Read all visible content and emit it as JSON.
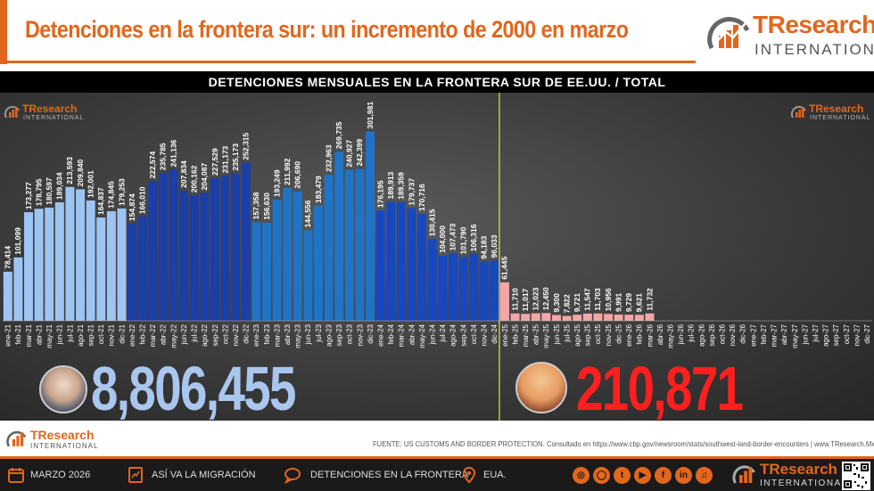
{
  "header": {
    "title": "Detenciones en la frontera sur: un incremento de 2000 en marzo",
    "logo_main": "TResearch",
    "logo_sub": "INTERNATIONAL"
  },
  "subtitle": "DETENCIONES MENSUALES EN LA FRONTERA SUR DE EE.UU. / TOTAL",
  "plot_logo": {
    "main": "TResearch",
    "sub": "INTERNATIONAL"
  },
  "totals": {
    "biden": "8,806,455",
    "trump": "210,871"
  },
  "footer": {
    "logo_main": "TResearch",
    "logo_sub": "INTERNATIONAL",
    "source": "FUENTE: US CUSTOMS AND BORDER PROTECTION. Consultado en https://www.cbp.gov/newsroom/stats/southwest-land-border-encounters | www.TResearch.Mx"
  },
  "bottom_bar": {
    "date": "MARZO 2026",
    "section": "ASÍ VA LA MIGRACIÓN",
    "topic": "DETENCIONES EN LA FRONTERA",
    "country": "EUA.",
    "social_icons": [
      "web-icon",
      "instagram-icon",
      "twitter-icon",
      "youtube-icon",
      "facebook-icon",
      "linkedin-icon",
      "tiktok-icon"
    ]
  },
  "colors": {
    "accent": "#e2661c",
    "y2021": "#9ec4f2",
    "y2022": "#1b3fa6",
    "y2023": "#1f74c6",
    "y2024": "#1748c0",
    "trump": "#f4a6a6",
    "divider": "#e6e63c",
    "biden_total": "#a9c6ee",
    "trump_total": "#ff1f1f"
  },
  "chart_data": {
    "type": "bar",
    "categories": [
      "ene-21",
      "feb-21",
      "mar-21",
      "abr-21",
      "may-21",
      "jun-21",
      "jul-21",
      "ago-21",
      "sep-21",
      "oct-21",
      "nov-21",
      "dic-21",
      "ene-22",
      "feb-22",
      "mar-22",
      "abr-22",
      "may-22",
      "jun-22",
      "jul-22",
      "ago-22",
      "sep-22",
      "oct-22",
      "nov-22",
      "dic-22",
      "ene-23",
      "feb-23",
      "mar-23",
      "abr-23",
      "may-23",
      "jun-23",
      "jul-23",
      "ago-23",
      "sep-23",
      "oct-23",
      "nov-23",
      "dic-23",
      "ene-24",
      "feb-24",
      "mar-24",
      "abr-24",
      "may-24",
      "jun-24",
      "jul-24",
      "ago-24",
      "sep-24",
      "oct-24",
      "nov-24",
      "dic-24",
      "ene-25",
      "feb-25",
      "mar-25",
      "abr-25",
      "may-25",
      "jun-25",
      "jul-25",
      "ago-25",
      "sep-25",
      "oct-25",
      "nov-25",
      "dic-25",
      "ene-26",
      "feb-26",
      "mar-26",
      "abr-26",
      "may-26",
      "jun-26",
      "jul-26",
      "ago-26",
      "sep-26",
      "oct-26",
      "nov-26",
      "dic-26",
      "ene-27",
      "feb-27",
      "mar-27",
      "abr-27",
      "may-27",
      "jun-27",
      "jul-27",
      "ago-27",
      "sep-27",
      "oct-27",
      "nov-27",
      "dic-27"
    ],
    "values": [
      78414,
      101099,
      173277,
      178795,
      180597,
      189034,
      213593,
      209840,
      192001,
      164837,
      174845,
      179253,
      154874,
      166010,
      222574,
      235785,
      241136,
      207834,
      200162,
      204087,
      227529,
      231173,
      235173,
      252315,
      157358,
      156630,
      193249,
      211992,
      206690,
      144556,
      183479,
      232963,
      269735,
      240927,
      242399,
      301981,
      176195,
      189913,
      189359,
      179737,
      170716,
      130415,
      104000,
      107473,
      101790,
      106316,
      94183,
      96033,
      61445,
      11710,
      11017,
      12023,
      12450,
      9300,
      7822,
      9721,
      11547,
      11703,
      10956,
      9991,
      9729,
      9621,
      11732,
      null,
      null,
      null,
      null,
      null,
      null,
      null,
      null,
      null,
      null,
      null,
      null,
      null,
      null,
      null,
      null,
      null,
      null,
      null,
      null,
      null
    ],
    "labels": [
      "78,414",
      "101,099",
      "173,277",
      "178,795",
      "180,597",
      "189,034",
      "213,593",
      "209,840",
      "192,001",
      "164,837",
      "174,845",
      "179,253",
      "154,874",
      "166,010",
      "222,574",
      "235,785",
      "241,136",
      "207,834",
      "200,162",
      "204,087",
      "227,529",
      "231,173",
      "235,173",
      "252,315",
      "157,358",
      "156,630",
      "193,249",
      "211,992",
      "206,690",
      "144,556",
      "183,479",
      "232,963",
      "269,735",
      "240,927",
      "242,399",
      "301,981",
      "176,195",
      "189,913",
      "189,359",
      "179,737",
      "170,716",
      "130,415",
      "104,000",
      "107,473",
      "101,790",
      "106,316",
      "94,183",
      "96,033",
      "61,445",
      "11,710",
      "11,017",
      "12,023",
      "12,450",
      "9,300",
      "7,822",
      "9,721",
      "11,547",
      "11,703",
      "10,956",
      "9,991",
      "9,729",
      "9,621",
      "11,732"
    ],
    "period_groups": [
      {
        "name": "2021",
        "start": 0,
        "end": 11,
        "color_key": "y2021"
      },
      {
        "name": "2022",
        "start": 12,
        "end": 23,
        "color_key": "y2022"
      },
      {
        "name": "2023",
        "start": 24,
        "end": 35,
        "color_key": "y2023"
      },
      {
        "name": "2024",
        "start": 36,
        "end": 47,
        "color_key": "y2024"
      },
      {
        "name": "2025-2027",
        "start": 48,
        "end": 83,
        "color_key": "trump"
      }
    ],
    "ylim": [
      0,
      310000
    ],
    "grid": false,
    "legend": "none",
    "title": "DETENCIONES MENSUALES EN LA FRONTERA SUR DE EE.UU. / TOTAL",
    "xlabel": "",
    "ylabel": ""
  }
}
